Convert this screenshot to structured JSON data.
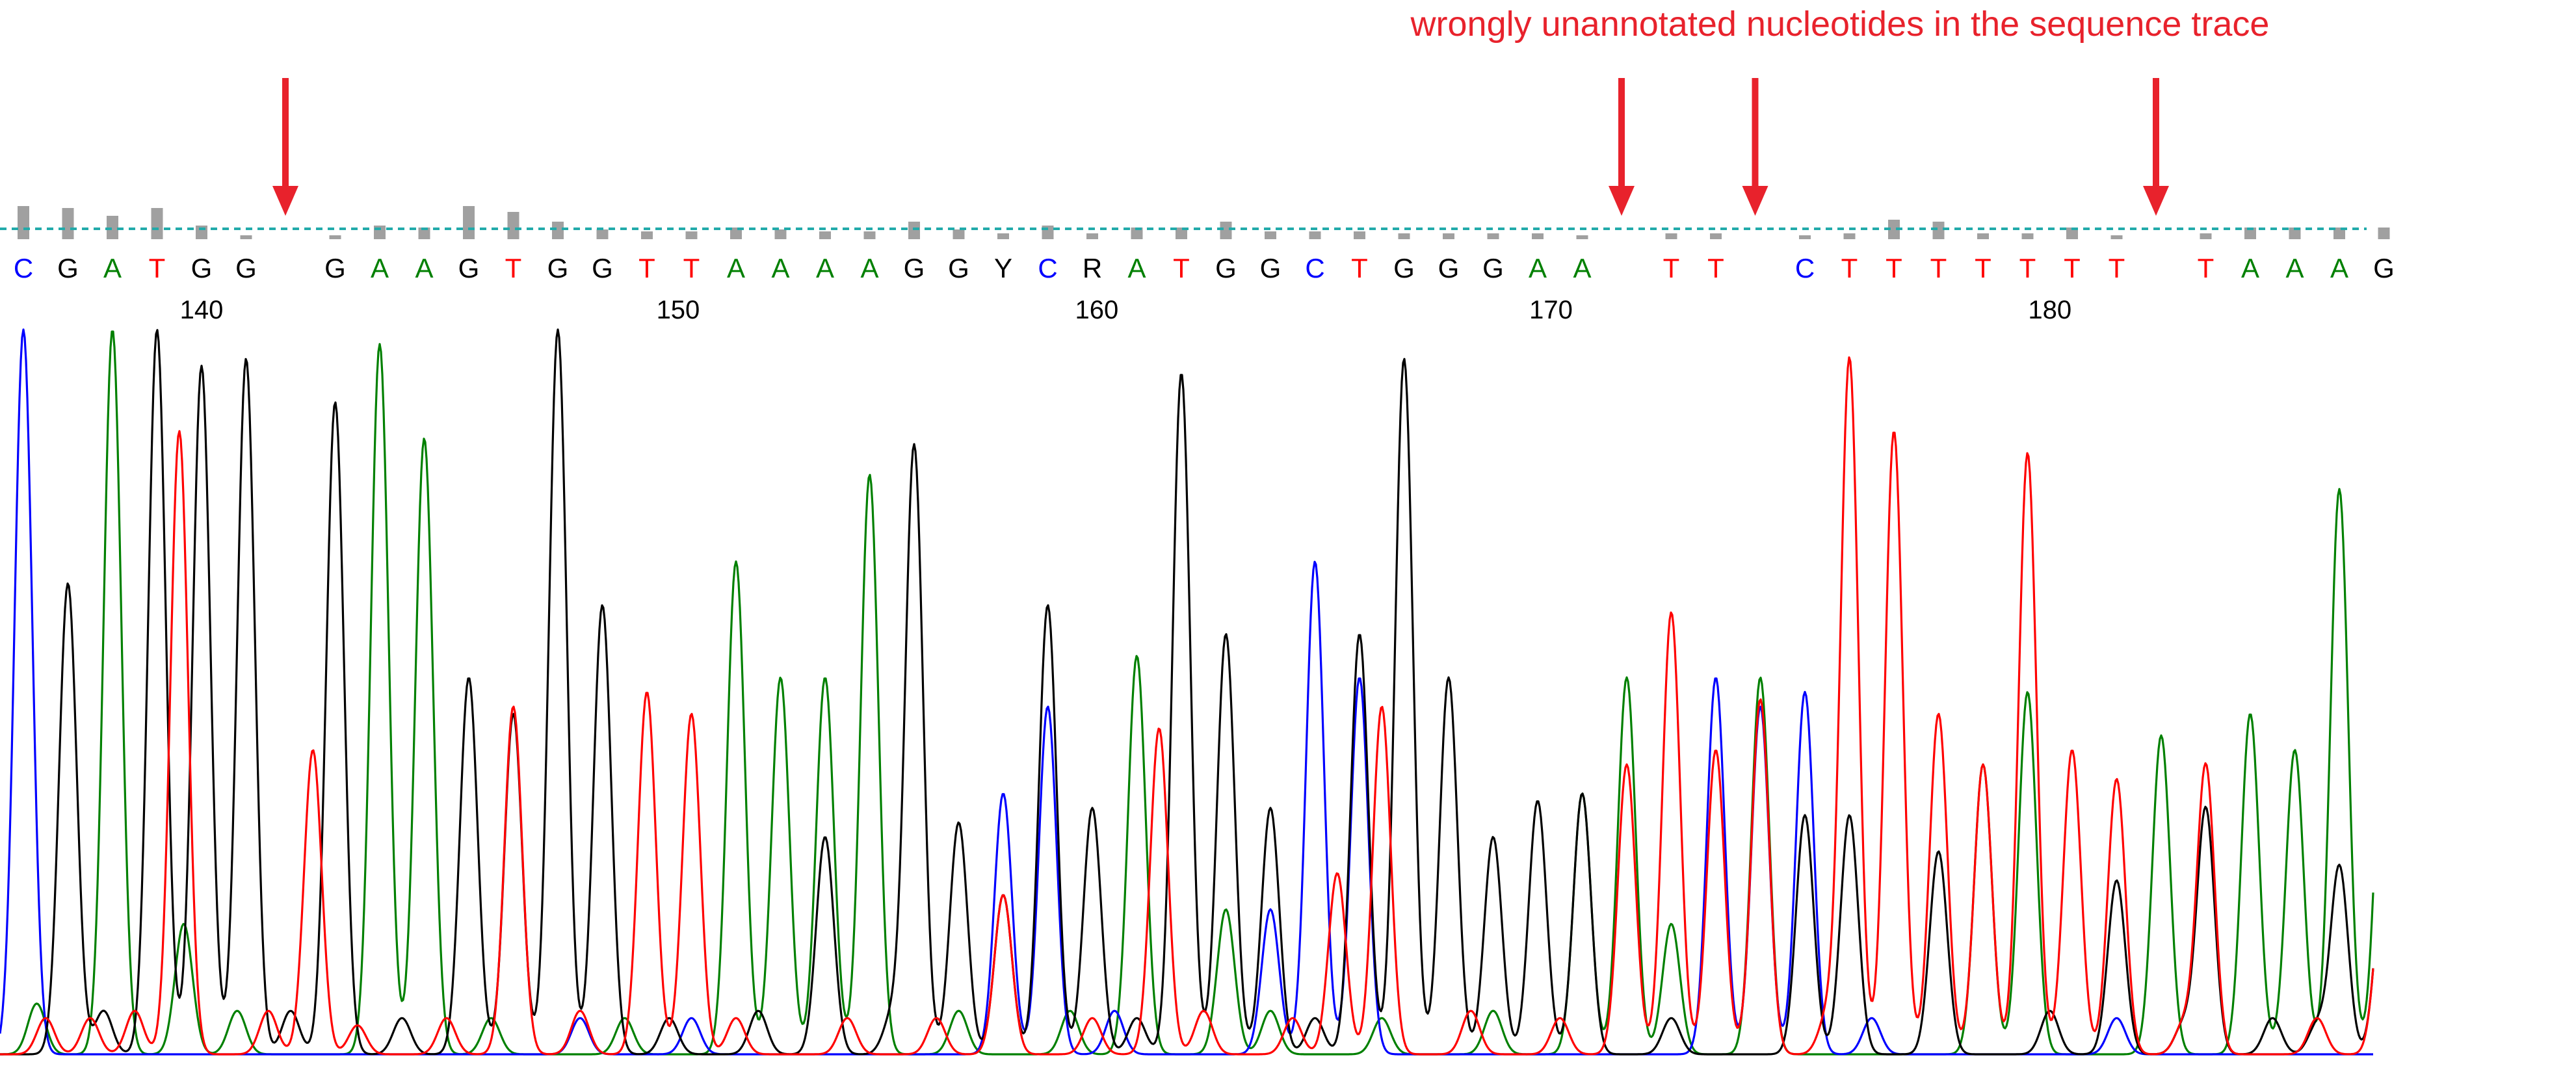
{
  "annotation": {
    "text": "wrongly unannotated nucleotides in the sequence trace",
    "color": "#e8222c"
  },
  "chart_data": {
    "type": "line",
    "title": "",
    "xlabel": "",
    "ylabel": "",
    "grid": false,
    "colors": {
      "A": "#008000",
      "C": "#0000ff",
      "G": "#000000",
      "T": "#ff0000",
      "N": "#000000",
      "quality_bar": "#a0a0a0",
      "quality_threshold": "#22aaaa",
      "arrow": "#e8222c"
    },
    "position_ticks": [
      140,
      150,
      160,
      170,
      180
    ],
    "base_calls": [
      {
        "base": "C",
        "q": 0.85
      },
      {
        "base": "G",
        "q": 0.8
      },
      {
        "base": "A",
        "q": 0.6
      },
      {
        "base": "T",
        "q": 0.8
      },
      {
        "base": "G",
        "q": 0.35
      },
      {
        "base": "G",
        "q": 0.1
      },
      {
        "base": "",
        "q": 0
      },
      {
        "base": "G",
        "q": 0.1
      },
      {
        "base": "A",
        "q": 0.35
      },
      {
        "base": "A",
        "q": 0.3
      },
      {
        "base": "G",
        "q": 0.85
      },
      {
        "base": "T",
        "q": 0.7
      },
      {
        "base": "G",
        "q": 0.45
      },
      {
        "base": "G",
        "q": 0.25
      },
      {
        "base": "T",
        "q": 0.2
      },
      {
        "base": "T",
        "q": 0.2
      },
      {
        "base": "A",
        "q": 0.3
      },
      {
        "base": "A",
        "q": 0.25
      },
      {
        "base": "A",
        "q": 0.2
      },
      {
        "base": "A",
        "q": 0.2
      },
      {
        "base": "G",
        "q": 0.45
      },
      {
        "base": "G",
        "q": 0.25
      },
      {
        "base": "Y",
        "q": 0.15
      },
      {
        "base": "C",
        "q": 0.35
      },
      {
        "base": "R",
        "q": 0.15
      },
      {
        "base": "A",
        "q": 0.3
      },
      {
        "base": "T",
        "q": 0.3
      },
      {
        "base": "G",
        "q": 0.45
      },
      {
        "base": "G",
        "q": 0.2
      },
      {
        "base": "C",
        "q": 0.2
      },
      {
        "base": "T",
        "q": 0.2
      },
      {
        "base": "G",
        "q": 0.15
      },
      {
        "base": "G",
        "q": 0.15
      },
      {
        "base": "G",
        "q": 0.15
      },
      {
        "base": "A",
        "q": 0.15
      },
      {
        "base": "A",
        "q": 0.1
      },
      {
        "base": "",
        "q": 0
      },
      {
        "base": "T",
        "q": 0.15
      },
      {
        "base": "T",
        "q": 0.15
      },
      {
        "base": "",
        "q": 0
      },
      {
        "base": "C",
        "q": 0.1
      },
      {
        "base": "T",
        "q": 0.15
      },
      {
        "base": "T",
        "q": 0.5
      },
      {
        "base": "T",
        "q": 0.45
      },
      {
        "base": "T",
        "q": 0.15
      },
      {
        "base": "T",
        "q": 0.15
      },
      {
        "base": "T",
        "q": 0.3
      },
      {
        "base": "T",
        "q": 0.1
      },
      {
        "base": "",
        "q": 0
      },
      {
        "base": "T",
        "q": 0.15
      },
      {
        "base": "A",
        "q": 0.3
      },
      {
        "base": "A",
        "q": 0.3
      },
      {
        "base": "A",
        "q": 0.3
      },
      {
        "base": "G",
        "q": 0.3
      }
    ],
    "arrows_at_gaps": [
      6,
      36,
      39,
      48
    ],
    "series": [
      {
        "name": "A",
        "peaks": [
          [
            2,
            1.0
          ],
          [
            3.6,
            0.18
          ],
          [
            8,
            0.98
          ],
          [
            9,
            0.85
          ],
          [
            16,
            0.68
          ],
          [
            17,
            0.52
          ],
          [
            18,
            0.52
          ],
          [
            19,
            0.8
          ],
          [
            25,
            0.55
          ],
          [
            27,
            0.2
          ],
          [
            35,
            0.36
          ],
          [
            36,
            0.52
          ],
          [
            37,
            0.18
          ],
          [
            39,
            0.52
          ],
          [
            44,
            0.4
          ],
          [
            45,
            0.5
          ],
          [
            48,
            0.44
          ],
          [
            50,
            0.47
          ],
          [
            51,
            0.42
          ],
          [
            52,
            0.78
          ],
          [
            53,
            0.47
          ],
          [
            0.3,
            0.07
          ],
          [
            4.8,
            0.06
          ],
          [
            10.5,
            0.05
          ],
          [
            13.5,
            0.05
          ],
          [
            21,
            0.06
          ],
          [
            23.5,
            0.06
          ],
          [
            28,
            0.06
          ],
          [
            30.5,
            0.05
          ],
          [
            33,
            0.06
          ]
        ]
      },
      {
        "name": "C",
        "peaks": [
          [
            0,
            1.0
          ],
          [
            22,
            0.36
          ],
          [
            23,
            0.48
          ],
          [
            28,
            0.2
          ],
          [
            29,
            0.68
          ],
          [
            30,
            0.52
          ],
          [
            38,
            0.52
          ],
          [
            39,
            0.48
          ],
          [
            40,
            0.5
          ],
          [
            12.5,
            0.05
          ],
          [
            15,
            0.05
          ],
          [
            24.5,
            0.06
          ],
          [
            41.5,
            0.05
          ],
          [
            47,
            0.05
          ]
        ]
      },
      {
        "name": "G",
        "peaks": [
          [
            1,
            0.65
          ],
          [
            3,
            1.0
          ],
          [
            4,
            0.95
          ],
          [
            5,
            0.96
          ],
          [
            7,
            0.9
          ],
          [
            10,
            0.52
          ],
          [
            11,
            0.47
          ],
          [
            12,
            1.0
          ],
          [
            13,
            0.62
          ],
          [
            18,
            0.3
          ],
          [
            20,
            0.84
          ],
          [
            21,
            0.32
          ],
          [
            22,
            0.22
          ],
          [
            23,
            0.62
          ],
          [
            24,
            0.34
          ],
          [
            26,
            0.94
          ],
          [
            27,
            0.58
          ],
          [
            28,
            0.34
          ],
          [
            30,
            0.58
          ],
          [
            31,
            0.96
          ],
          [
            32,
            0.52
          ],
          [
            33,
            0.3
          ],
          [
            34,
            0.35
          ],
          [
            35,
            0.36
          ],
          [
            40,
            0.33
          ],
          [
            41,
            0.33
          ],
          [
            43,
            0.28
          ],
          [
            47,
            0.24
          ],
          [
            49,
            0.34
          ],
          [
            52,
            0.26
          ],
          [
            53,
            0.25
          ],
          [
            1.8,
            0.06
          ],
          [
            6,
            0.06
          ],
          [
            8.5,
            0.05
          ],
          [
            14.5,
            0.05
          ],
          [
            16.5,
            0.06
          ],
          [
            19.5,
            0.05
          ],
          [
            25,
            0.05
          ],
          [
            29,
            0.05
          ],
          [
            37,
            0.05
          ],
          [
            45.5,
            0.06
          ],
          [
            48.5,
            0.04
          ],
          [
            50.5,
            0.05
          ],
          [
            51.5,
            0.04
          ]
        ]
      },
      {
        "name": "T",
        "peaks": [
          [
            3.5,
            0.86
          ],
          [
            6.5,
            0.42
          ],
          [
            11,
            0.48
          ],
          [
            14,
            0.5
          ],
          [
            15,
            0.47
          ],
          [
            22,
            0.22
          ],
          [
            25.5,
            0.45
          ],
          [
            29.5,
            0.25
          ],
          [
            30.5,
            0.48
          ],
          [
            36,
            0.4
          ],
          [
            37,
            0.61
          ],
          [
            38,
            0.42
          ],
          [
            39,
            0.49
          ],
          [
            41,
            0.96
          ],
          [
            42,
            0.86
          ],
          [
            43,
            0.47
          ],
          [
            44,
            0.4
          ],
          [
            45,
            0.83
          ],
          [
            46,
            0.42
          ],
          [
            47,
            0.38
          ],
          [
            49,
            0.4
          ],
          [
            53,
            0.25
          ],
          [
            0.5,
            0.05
          ],
          [
            1.5,
            0.05
          ],
          [
            2.5,
            0.06
          ],
          [
            5.5,
            0.06
          ],
          [
            7.5,
            0.04
          ],
          [
            9.5,
            0.05
          ],
          [
            12.5,
            0.06
          ],
          [
            16,
            0.05
          ],
          [
            18.5,
            0.05
          ],
          [
            20.5,
            0.05
          ],
          [
            24,
            0.05
          ],
          [
            26.5,
            0.06
          ],
          [
            28.5,
            0.05
          ],
          [
            32.5,
            0.06
          ],
          [
            34.5,
            0.05
          ],
          [
            40.5,
            0.05
          ],
          [
            48.5,
            0.04
          ],
          [
            51.5,
            0.05
          ]
        ]
      }
    ]
  }
}
